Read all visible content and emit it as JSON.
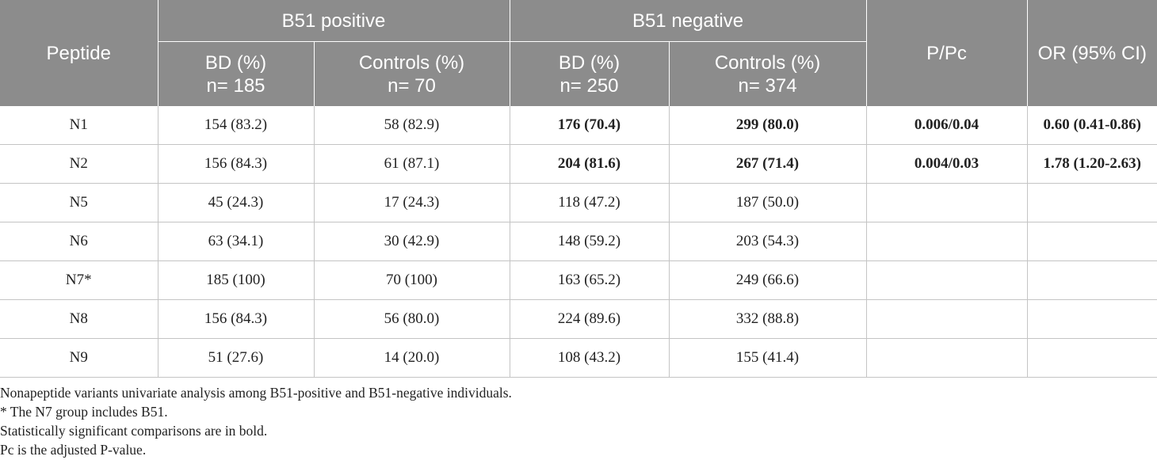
{
  "header": {
    "peptide": "Peptide",
    "b51_positive": "B51 positive",
    "b51_negative": "B51 negative",
    "p_pc": "P/Pc",
    "or_ci": "OR (95% CI)",
    "bd_line1": "BD (%)",
    "controls_line1": "Controls (%)",
    "b51pos_bd_n": "n= 185",
    "b51pos_ctrl_n": "n= 70",
    "b51neg_bd_n": "n= 250",
    "b51neg_ctrl_n": "n= 374"
  },
  "rows": [
    {
      "peptide": "N1",
      "pos_bd": "154 (83.2)",
      "pos_ctrl": "58 (82.9)",
      "neg_bd": "176 (70.4)",
      "neg_ctrl": "299 (80.0)",
      "p": "0.006/0.04",
      "or": "0.60 (0.41-0.86)"
    },
    {
      "peptide": "N2",
      "pos_bd": "156 (84.3)",
      "pos_ctrl": "61 (87.1)",
      "neg_bd": "204 (81.6)",
      "neg_ctrl": "267 (71.4)",
      "p": "0.004/0.03",
      "or": "1.78 (1.20-2.63)"
    },
    {
      "peptide": "N5",
      "pos_bd": "45 (24.3)",
      "pos_ctrl": "17 (24.3)",
      "neg_bd": "118 (47.2)",
      "neg_ctrl": "187 (50.0)",
      "p": "",
      "or": ""
    },
    {
      "peptide": "N6",
      "pos_bd": "63 (34.1)",
      "pos_ctrl": "30 (42.9)",
      "neg_bd": "148 (59.2)",
      "neg_ctrl": "203 (54.3)",
      "p": "",
      "or": ""
    },
    {
      "peptide": "N7*",
      "pos_bd": "185 (100)",
      "pos_ctrl": "70 (100)",
      "neg_bd": "163 (65.2)",
      "neg_ctrl": "249 (66.6)",
      "p": "",
      "or": ""
    },
    {
      "peptide": "N8",
      "pos_bd": "156 (84.3)",
      "pos_ctrl": "56 (80.0)",
      "neg_bd": "224 (89.6)",
      "neg_ctrl": "332 (88.8)",
      "p": "",
      "or": ""
    },
    {
      "peptide": "N9",
      "pos_bd": "51 (27.6)",
      "pos_ctrl": "14 (20.0)",
      "neg_bd": "108 (43.2)",
      "neg_ctrl": "155 (41.4)",
      "p": "",
      "or": ""
    }
  ],
  "footnotes": [
    "Nonapeptide variants univariate analysis among B51-positive and B51-negative individuals.",
    "* The N7 group includes B51.",
    "Statistically significant comparisons are in bold.",
    "Pc is the adjusted P-value."
  ]
}
